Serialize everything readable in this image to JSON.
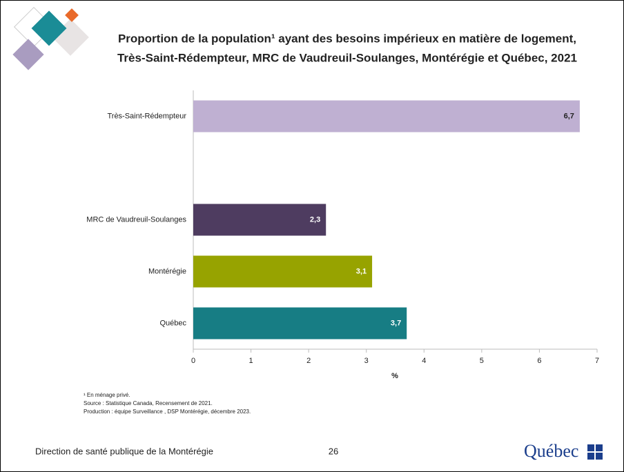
{
  "chart_data": {
    "type": "bar",
    "orientation": "horizontal",
    "title": [
      "Proportion de la population¹ ayant des besoins impérieux en matière de logement,",
      "Très-Saint-Rédempteur, MRC de Vaudreuil-Soulanges, Montérégie et Québec, 2021"
    ],
    "categories": [
      "Très-Saint-Rédempteur",
      null,
      "MRC de Vaudreuil-Soulanges",
      "Montérégie",
      "Québec"
    ],
    "values": [
      6.7,
      null,
      2.3,
      3.1,
      3.7
    ],
    "value_labels": [
      "6,7",
      null,
      "2,3",
      "3,1",
      "3,7"
    ],
    "colors": [
      "#bfb0d2",
      null,
      "#4e3c60",
      "#97a300",
      "#177d84"
    ],
    "xlim": [
      0,
      7
    ],
    "xticks": [
      0,
      1,
      2,
      3,
      4,
      5,
      6,
      7
    ],
    "xlabel": "%",
    "notes": [
      "¹ En ménage privé.",
      "Source : Statistique Canada, Recensement de 2021.",
      "Production : équipe Surveillance , DSP Montérégie, décembre 2023."
    ]
  },
  "footer": {
    "organization": "Direction de santé publique de la Montérégie",
    "page": "26",
    "logo": "Québec"
  }
}
